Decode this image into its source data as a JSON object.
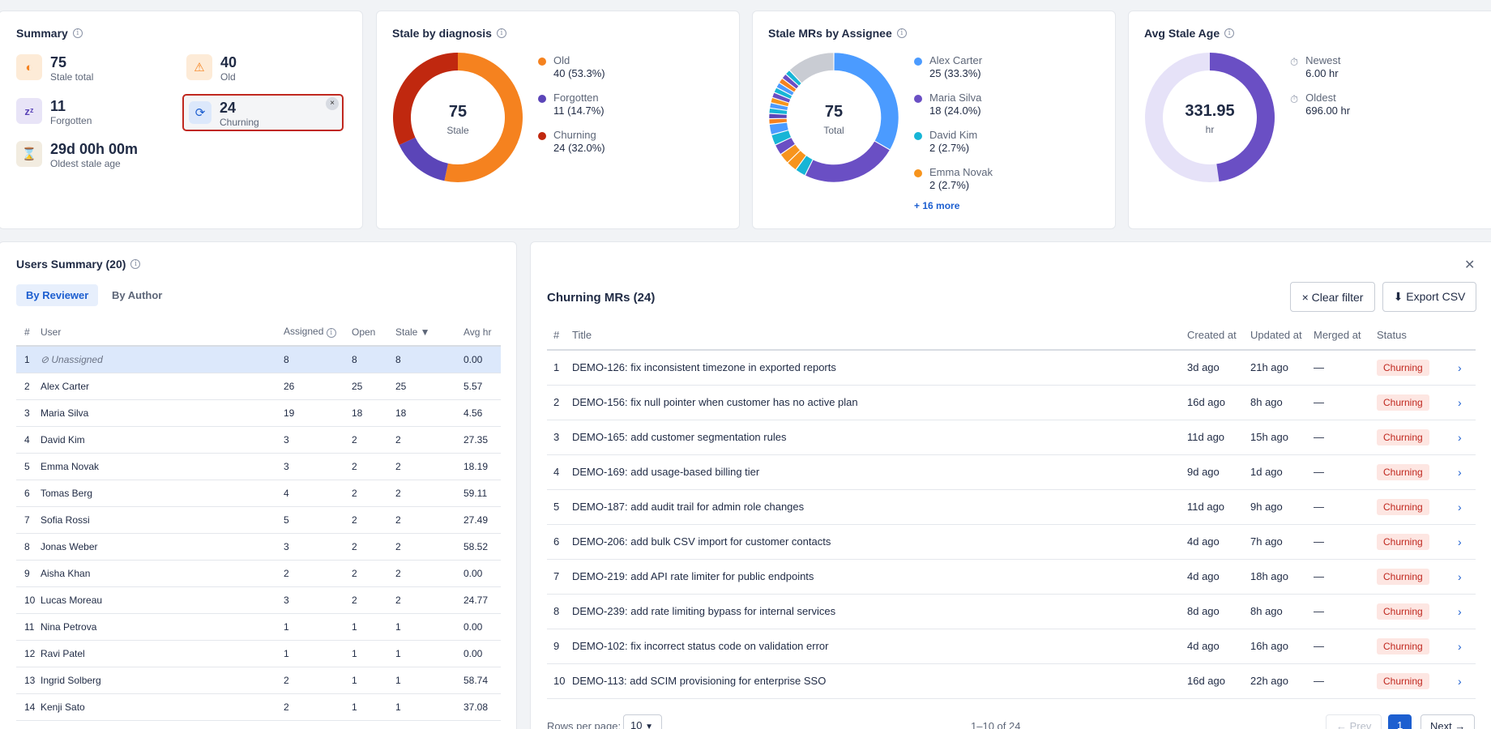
{
  "summary": {
    "title": "Summary",
    "items": [
      {
        "value": "75",
        "label": "Stale total",
        "icon": "half-circle-icon"
      },
      {
        "value": "40",
        "label": "Old",
        "icon": "warning-icon"
      },
      {
        "value": "11",
        "label": "Forgotten",
        "icon": "sleep-icon"
      },
      {
        "value": "24",
        "label": "Churning",
        "icon": "cycle-icon",
        "close": "×"
      },
      {
        "value": "29d 00h 00m",
        "label": "Oldest stale age",
        "icon": "hourglass-icon"
      }
    ]
  },
  "diagnosis": {
    "title": "Stale by diagnosis",
    "center_value": "75",
    "center_label": "Stale",
    "slices": [
      {
        "name": "Old",
        "value": 40,
        "display": "40 (53.3%)",
        "color": "#f5821f"
      },
      {
        "name": "Forgotten",
        "value": 11,
        "display": "11 (14.7%)",
        "color": "#5b45b8"
      },
      {
        "name": "Churning",
        "value": 24,
        "display": "24 (32.0%)",
        "color": "#c0280f"
      }
    ]
  },
  "assignee": {
    "title": "Stale MRs by Assignee",
    "center_value": "75",
    "center_label": "Total",
    "slices": [
      {
        "name": "Alex Carter",
        "value": 25,
        "display": "25 (33.3%)",
        "color": "#4b9bff"
      },
      {
        "name": "Maria Silva",
        "value": 18,
        "display": "18 (24.0%)",
        "color": "#6a4fc4"
      },
      {
        "name": "David Kim",
        "value": 2,
        "display": "2 (2.7%)",
        "color": "#17b5d6"
      },
      {
        "name": "Emma Novak",
        "value": 2,
        "display": "2 (2.7%)",
        "color": "#f7941d"
      }
    ],
    "more": "+ 16 more"
  },
  "avg_age": {
    "title": "Avg Stale Age",
    "center_value": "331.95",
    "center_label": "hr",
    "fraction": 0.477,
    "newest_label": "Newest",
    "newest_value": "6.00 hr",
    "oldest_label": "Oldest",
    "oldest_value": "696.00 hr"
  },
  "users": {
    "title": "Users Summary (20)",
    "tabs": [
      "By Reviewer",
      "By Author"
    ],
    "columns": [
      "#",
      "User",
      "Assigned",
      "Open",
      "Stale ▼",
      "Avg hr"
    ],
    "rows": [
      [
        "1",
        "Unassigned",
        "8",
        "8",
        "8",
        "0.00"
      ],
      [
        "2",
        "Alex Carter",
        "26",
        "25",
        "25",
        "5.57"
      ],
      [
        "3",
        "Maria Silva",
        "19",
        "18",
        "18",
        "4.56"
      ],
      [
        "4",
        "David Kim",
        "3",
        "2",
        "2",
        "27.35"
      ],
      [
        "5",
        "Emma Novak",
        "3",
        "2",
        "2",
        "18.19"
      ],
      [
        "6",
        "Tomas Berg",
        "4",
        "2",
        "2",
        "59.11"
      ],
      [
        "7",
        "Sofia Rossi",
        "5",
        "2",
        "2",
        "27.49"
      ],
      [
        "8",
        "Jonas Weber",
        "3",
        "2",
        "2",
        "58.52"
      ],
      [
        "9",
        "Aisha Khan",
        "2",
        "2",
        "2",
        "0.00"
      ],
      [
        "10",
        "Lucas Moreau",
        "3",
        "2",
        "2",
        "24.77"
      ],
      [
        "11",
        "Nina Petrova",
        "1",
        "1",
        "1",
        "0.00"
      ],
      [
        "12",
        "Ravi Patel",
        "1",
        "1",
        "1",
        "0.00"
      ],
      [
        "13",
        "Ingrid Solberg",
        "2",
        "1",
        "1",
        "58.74"
      ],
      [
        "14",
        "Kenji Sato",
        "2",
        "1",
        "1",
        "37.08"
      ]
    ]
  },
  "mrs": {
    "title": "Churning MRs (24)",
    "clear_filter": "× Clear filter",
    "export": "⬇ Export CSV",
    "close": "✕",
    "columns": [
      "#",
      "Title",
      "Created at",
      "Updated at",
      "Merged at",
      "Status"
    ],
    "rows": [
      [
        "1",
        "DEMO-126: fix inconsistent timezone in exported reports",
        "3d ago",
        "21h ago",
        "—",
        "Churning"
      ],
      [
        "2",
        "DEMO-156: fix null pointer when customer has no active plan",
        "16d ago",
        "8h ago",
        "—",
        "Churning"
      ],
      [
        "3",
        "DEMO-165: add customer segmentation rules",
        "11d ago",
        "15h ago",
        "—",
        "Churning"
      ],
      [
        "4",
        "DEMO-169: add usage-based billing tier",
        "9d ago",
        "1d ago",
        "—",
        "Churning"
      ],
      [
        "5",
        "DEMO-187: add audit trail for admin role changes",
        "11d ago",
        "9h ago",
        "—",
        "Churning"
      ],
      [
        "6",
        "DEMO-206: add bulk CSV import for customer contacts",
        "4d ago",
        "7h ago",
        "—",
        "Churning"
      ],
      [
        "7",
        "DEMO-219: add API rate limiter for public endpoints",
        "4d ago",
        "18h ago",
        "—",
        "Churning"
      ],
      [
        "8",
        "DEMO-239: add rate limiting bypass for internal services",
        "8d ago",
        "8h ago",
        "—",
        "Churning"
      ],
      [
        "9",
        "DEMO-102: fix incorrect status code on validation error",
        "4d ago",
        "16h ago",
        "—",
        "Churning"
      ],
      [
        "10",
        "DEMO-113: add SCIM provisioning for enterprise SSO",
        "16d ago",
        "22h ago",
        "—",
        "Churning"
      ]
    ],
    "pagination": {
      "rows_label": "Rows per page:",
      "rows_value": "10",
      "range": "1–10 of 24",
      "prev": "← Prev",
      "page": "1",
      "next": "Next →"
    }
  }
}
